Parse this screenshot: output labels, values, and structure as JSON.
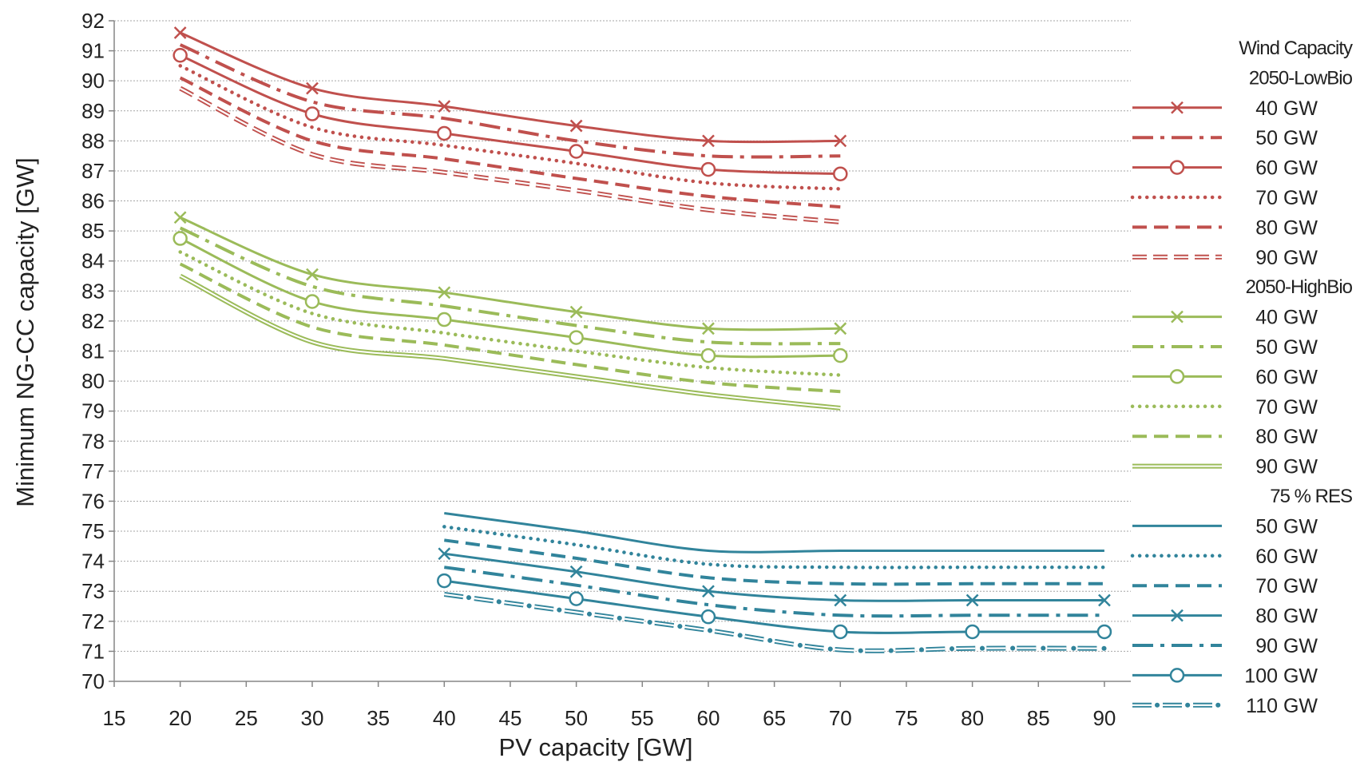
{
  "chart_data": {
    "type": "line",
    "xlabel": "PV capacity [GW]",
    "ylabel": "Minimum NG-CC capacity [GW]",
    "xlim": [
      15,
      92
    ],
    "ylim": [
      70,
      92
    ],
    "xticks": [
      15,
      20,
      25,
      30,
      35,
      40,
      45,
      50,
      55,
      60,
      65,
      70,
      75,
      80,
      85,
      90
    ],
    "yticks": [
      70,
      71,
      72,
      73,
      74,
      75,
      76,
      77,
      78,
      79,
      80,
      81,
      82,
      83,
      84,
      85,
      86,
      87,
      88,
      89,
      90,
      91,
      92
    ],
    "grid": "horizontal dotted",
    "legend_position": "right",
    "legend_title": "Wind Capacity",
    "colors": {
      "LowBio": "#c0504d",
      "HighBio": "#9bbb59",
      "RES": "#31849b"
    },
    "groups": [
      {
        "name": "2050-LowBio",
        "color": "#c0504d",
        "series": [
          {
            "name": "40 GW",
            "style": "x-marker",
            "x": [
              20,
              30,
              40,
              50,
              60,
              70
            ],
            "values": [
              91.6,
              89.75,
              89.15,
              88.5,
              88.0,
              88.0
            ]
          },
          {
            "name": "50 GW",
            "style": "dash-dot",
            "x": [
              20,
              30,
              40,
              50,
              60,
              70
            ],
            "values": [
              91.2,
              89.3,
              88.75,
              88.0,
              87.5,
              87.5
            ]
          },
          {
            "name": "60 GW",
            "style": "circle-marker",
            "x": [
              20,
              30,
              40,
              50,
              60,
              70
            ],
            "values": [
              90.85,
              88.9,
              88.25,
              87.65,
              87.05,
              86.9
            ]
          },
          {
            "name": "70 GW",
            "style": "dotted",
            "x": [
              20,
              30,
              40,
              50,
              60,
              70
            ],
            "values": [
              90.5,
              88.45,
              87.85,
              87.25,
              86.6,
              86.4
            ]
          },
          {
            "name": "80 GW",
            "style": "dashed",
            "x": [
              20,
              30,
              40,
              50,
              60,
              70
            ],
            "values": [
              90.1,
              88.0,
              87.4,
              86.75,
              86.15,
              85.8
            ]
          },
          {
            "name": "90 GW",
            "style": "hollow-dash",
            "x": [
              20,
              30,
              40,
              50,
              60,
              70
            ],
            "values": [
              89.75,
              87.55,
              86.95,
              86.35,
              85.7,
              85.3
            ]
          }
        ]
      },
      {
        "name": "2050-HighBio",
        "color": "#9bbb59",
        "series": [
          {
            "name": "40 GW",
            "style": "x-marker",
            "x": [
              20,
              30,
              40,
              50,
              60,
              70
            ],
            "values": [
              85.45,
              83.55,
              82.95,
              82.3,
              81.75,
              81.75
            ]
          },
          {
            "name": "50 GW",
            "style": "dash-dot",
            "x": [
              20,
              30,
              40,
              50,
              60,
              70
            ],
            "values": [
              85.1,
              83.15,
              82.5,
              81.85,
              81.3,
              81.25
            ]
          },
          {
            "name": "60 GW",
            "style": "circle-marker",
            "x": [
              20,
              30,
              40,
              50,
              60,
              70
            ],
            "values": [
              84.75,
              82.65,
              82.05,
              81.45,
              80.85,
              80.85
            ]
          },
          {
            "name": "70 GW",
            "style": "dotted",
            "x": [
              20,
              30,
              40,
              50,
              60,
              70
            ],
            "values": [
              84.3,
              82.25,
              81.6,
              81.0,
              80.45,
              80.2
            ]
          },
          {
            "name": "80 GW",
            "style": "dashed",
            "x": [
              20,
              30,
              40,
              50,
              60,
              70
            ],
            "values": [
              83.9,
              81.8,
              81.2,
              80.55,
              79.95,
              79.65
            ]
          },
          {
            "name": "90 GW",
            "style": "double-line",
            "x": [
              20,
              30,
              40,
              50,
              60,
              70
            ],
            "values": [
              83.5,
              81.3,
              80.75,
              80.15,
              79.55,
              79.1
            ]
          }
        ]
      },
      {
        "name": "75 % RES",
        "color": "#31849b",
        "series": [
          {
            "name": "50 GW",
            "style": "solid",
            "x": [
              40,
              50,
              60,
              70,
              80,
              90
            ],
            "values": [
              75.6,
              75.0,
              74.35,
              74.35,
              74.35,
              74.35
            ]
          },
          {
            "name": "60 GW",
            "style": "dotted",
            "x": [
              40,
              50,
              60,
              70,
              80,
              90
            ],
            "values": [
              75.15,
              74.55,
              73.9,
              73.8,
              73.8,
              73.8
            ]
          },
          {
            "name": "70 GW",
            "style": "dashed",
            "x": [
              40,
              50,
              60,
              70,
              80,
              90
            ],
            "values": [
              74.7,
              74.1,
              73.45,
              73.25,
              73.25,
              73.25
            ]
          },
          {
            "name": "80 GW",
            "style": "x-marker",
            "x": [
              40,
              50,
              60,
              70,
              80,
              90
            ],
            "values": [
              74.25,
              73.65,
              73.0,
              72.7,
              72.7,
              72.7
            ]
          },
          {
            "name": "90 GW",
            "style": "dash-dot",
            "x": [
              40,
              50,
              60,
              70,
              80,
              90
            ],
            "values": [
              73.8,
              73.2,
              72.55,
              72.2,
              72.2,
              72.2
            ]
          },
          {
            "name": "100 GW",
            "style": "circle-marker",
            "x": [
              40,
              50,
              60,
              70,
              80,
              90
            ],
            "values": [
              73.35,
              72.75,
              72.15,
              71.65,
              71.65,
              71.65
            ]
          },
          {
            "name": "110 GW",
            "style": "hollow-dash-dot",
            "x": [
              40,
              50,
              60,
              70,
              80,
              90
            ],
            "values": [
              72.9,
              72.3,
              71.7,
              71.05,
              71.1,
              71.1
            ]
          }
        ]
      }
    ]
  }
}
